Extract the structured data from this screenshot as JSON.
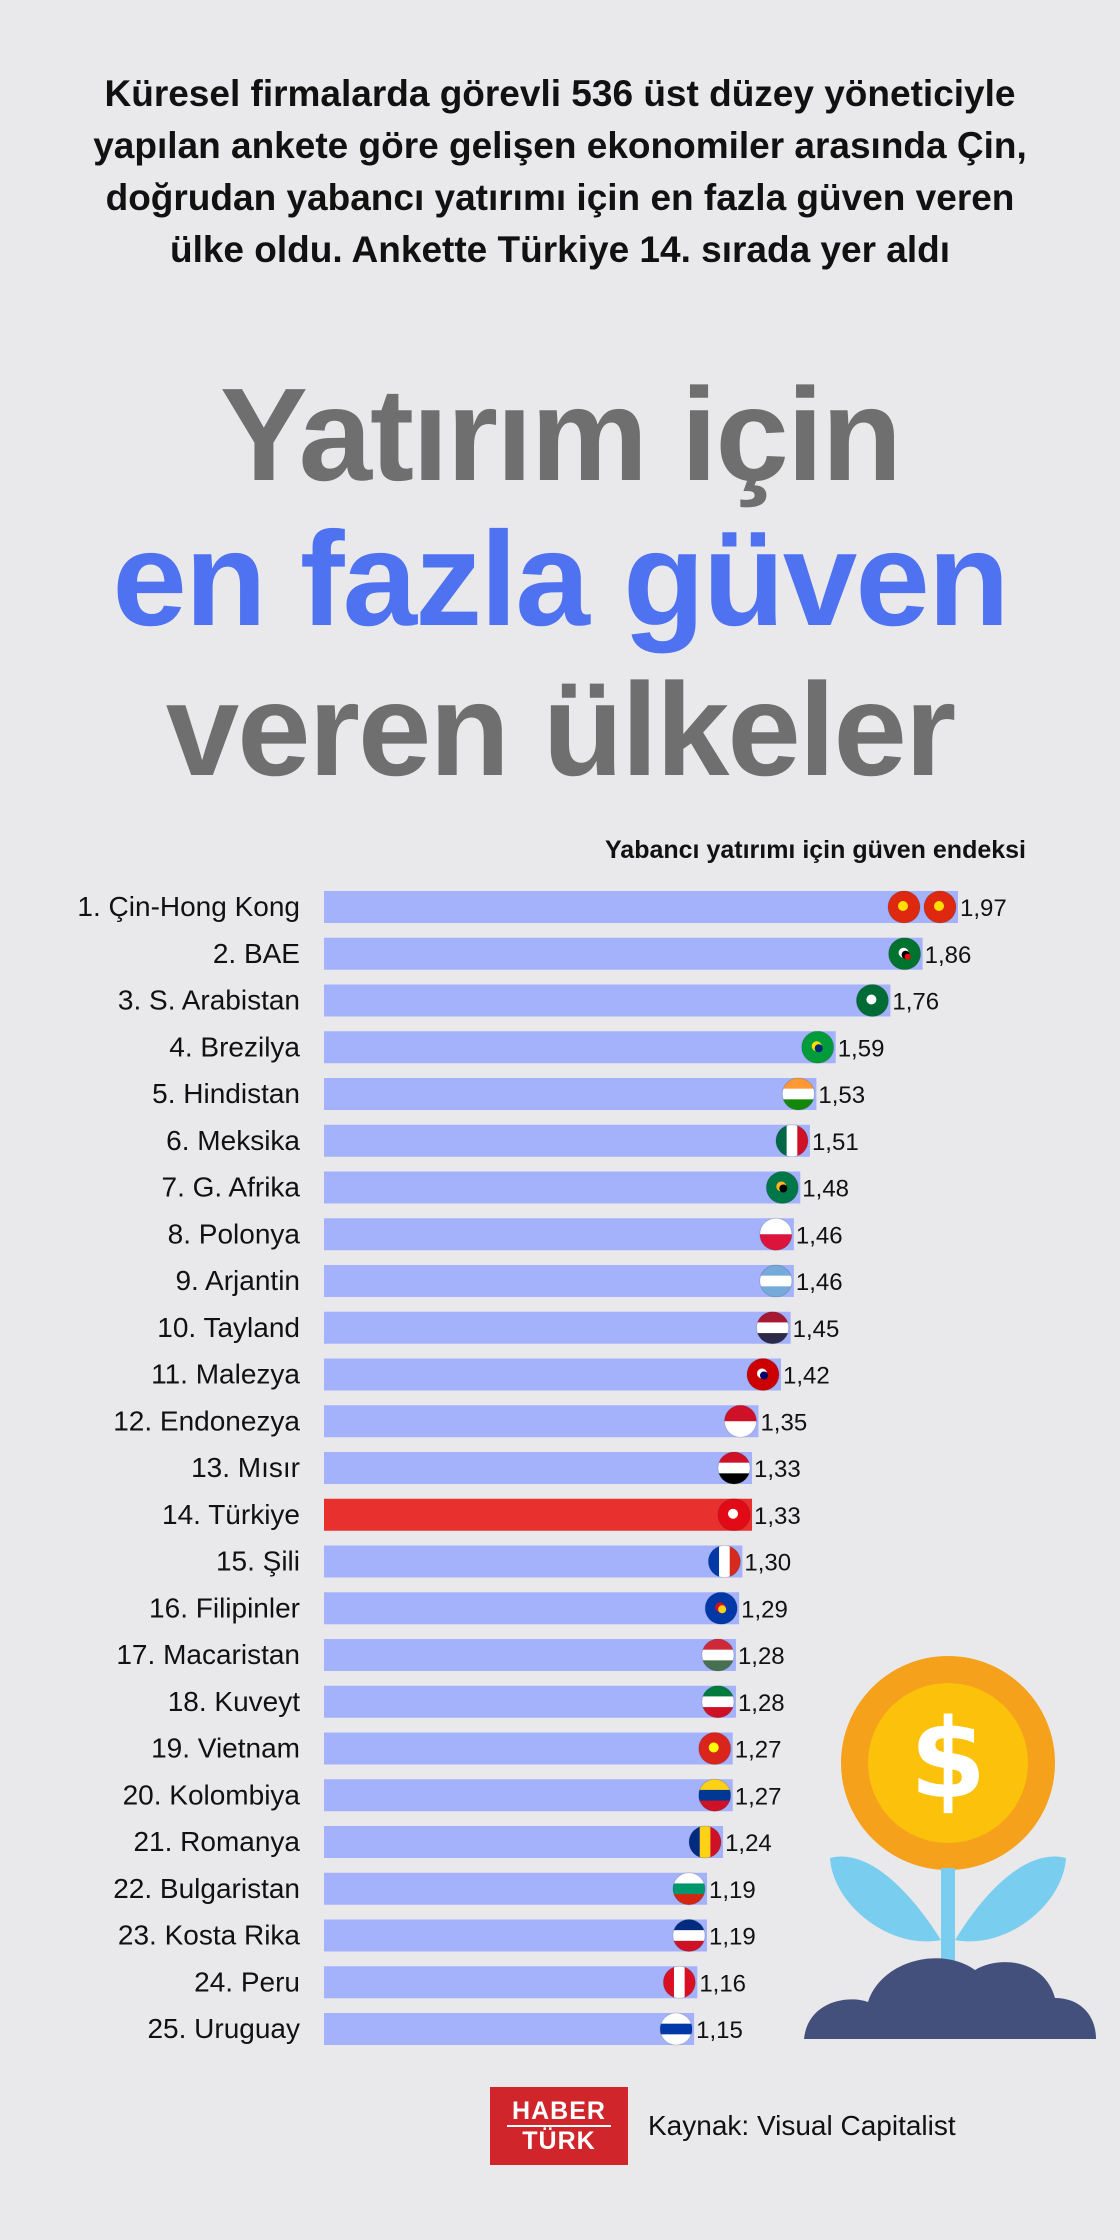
{
  "intro": "Küresel firmalarda görevli 536 üst düzey yöneticiyle yapılan ankete göre gelişen ekonomiler arasında Çin, doğrudan yabancı yatırımı için en fazla güven veren ülke oldu. Ankette Türkiye 14. sırada yer aldı",
  "headline": {
    "line1": "Yatırım için",
    "line2": "en fazla güven",
    "line3": "veren ülkeler"
  },
  "colors": {
    "bar": "#a3b2fb",
    "highlight": "#e8302f",
    "accent": "#4f72f1",
    "headline_gray": "#6f6f6f",
    "plant_pot": "#43507c",
    "leaf": "#79cdee",
    "coin_outer": "#f5a11c",
    "coin_inner": "#fcc10a"
  },
  "chart_data": {
    "type": "bar",
    "orientation": "horizontal",
    "title": "Yabancı yatırımı için güven endeksi",
    "categories": [
      "1. Çin-Hong Kong",
      "2. BAE",
      "3. S. Arabistan",
      "4. Brezilya",
      "5. Hindistan",
      "6. Meksika",
      "7. G. Afrika",
      "8. Polonya",
      "9. Arjantin",
      "10. Tayland",
      "11. Malezya",
      "12. Endonezya",
      "13. Mısır",
      "14. Türkiye",
      "15. Şili",
      "16. Filipinler",
      "17. Macaristan",
      "18. Kuveyt",
      "19. Vietnam",
      "20. Kolombiya",
      "21. Romanya",
      "22. Bulgaristan",
      "23. Kosta Rika",
      "24. Peru",
      "25. Uruguay"
    ],
    "values": [
      1.97,
      1.86,
      1.76,
      1.59,
      1.53,
      1.51,
      1.48,
      1.46,
      1.46,
      1.45,
      1.42,
      1.35,
      1.33,
      1.33,
      1.3,
      1.29,
      1.28,
      1.28,
      1.27,
      1.27,
      1.24,
      1.19,
      1.19,
      1.16,
      1.15
    ],
    "value_labels": [
      "1,97",
      "1,86",
      "1,76",
      "1,59",
      "1,53",
      "1,51",
      "1,48",
      "1,46",
      "1,46",
      "1,45",
      "1,42",
      "1,35",
      "1,33",
      "1,33",
      "1,30",
      "1,29",
      "1,28",
      "1,28",
      "1,27",
      "1,27",
      "1,24",
      "1,19",
      "1,19",
      "1,16",
      "1,15"
    ],
    "highlight": "14. Türkiye",
    "flags": [
      "china+hong-kong",
      "uae",
      "saudi-arabia",
      "brazil",
      "india",
      "mexico",
      "south-africa",
      "poland",
      "argentina",
      "thailand",
      "malaysia",
      "indonesia",
      "egypt",
      "turkey",
      "chile",
      "philippines",
      "hungary",
      "kuwait",
      "vietnam",
      "colombia",
      "romania",
      "bulgaria",
      "costa-rica",
      "peru",
      "uruguay"
    ]
  },
  "logo": {
    "line1": "HABER",
    "line2": "TÜRK"
  },
  "source": "Kaynak: Visual Capitalist",
  "decoration": "money-plant-icon"
}
